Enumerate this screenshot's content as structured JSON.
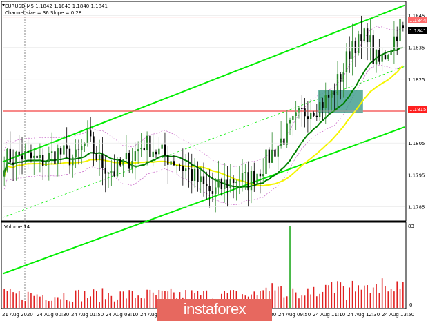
{
  "header": {
    "symbol_line": "EURUSD,M5  1.1842 1.1843 1.1840 1.1841",
    "channel_line": "Channel size = 36 Slope = 0.28"
  },
  "price_tags": {
    "top": "1.1844",
    "current": "1.1841",
    "support": "1.1815"
  },
  "volume_panel": {
    "title": "Volume 14",
    "top_label": "83",
    "zero_label": "0"
  },
  "watermark": "instaforex",
  "colors": {
    "bull": "#2e8b2e",
    "bear": "#000000",
    "volume": "#e02020",
    "big_volume": "#22aa22",
    "ma_green": "#008000",
    "ma_yellow": "#f5f500",
    "channel": "#00ee00",
    "envelope": "#c864c8",
    "support_line": "#ff2020",
    "zone": "#3a9a8a"
  },
  "chart_data": {
    "type": "candlestick",
    "price_axis": {
      "ticks": [
        "1.1845",
        "1.1835",
        "1.1825",
        "1.1815",
        "1.1805",
        "1.1795",
        "1.1785"
      ],
      "ylim": [
        1.1781,
        1.1849
      ]
    },
    "time_axis": [
      "21 Aug 2020",
      "24 Aug 00:30",
      "24 Aug 01:50",
      "24 Aug 03:10",
      "24 Aug 04:30",
      "24 Aug 05:50",
      "24 Aug 07:10",
      "24 Aug 08:30",
      "24 Aug 09:50",
      "24 Aug 11:10",
      "24 Aug 12:30",
      "24 Aug 13:50"
    ],
    "support_level": 1.1815,
    "current_price": 1.1841,
    "last_candle": {
      "open": 1.1842,
      "high": 1.1843,
      "low": 1.184,
      "close": 1.1841
    },
    "close_path": [
      [
        0,
        1.18
      ],
      [
        6,
        1.1801
      ],
      [
        12,
        1.1799
      ],
      [
        18,
        1.1802
      ],
      [
        24,
        1.18
      ],
      [
        28,
        1.1806
      ],
      [
        32,
        1.1799
      ],
      [
        37,
        1.1796
      ],
      [
        42,
        1.18
      ],
      [
        47,
        1.1805
      ],
      [
        52,
        1.1802
      ],
      [
        58,
        1.1799
      ],
      [
        62,
        1.1796
      ],
      [
        66,
        1.1792
      ],
      [
        70,
        1.1789
      ],
      [
        74,
        1.1792
      ],
      [
        78,
        1.1794
      ],
      [
        82,
        1.1793
      ],
      [
        86,
        1.1797
      ],
      [
        90,
        1.1802
      ],
      [
        94,
        1.1807
      ],
      [
        98,
        1.1812
      ],
      [
        102,
        1.1816
      ],
      [
        106,
        1.1817
      ],
      [
        110,
        1.182
      ],
      [
        114,
        1.1828
      ],
      [
        117,
        1.1837
      ],
      [
        120,
        1.1836
      ],
      [
        122,
        1.184
      ],
      [
        124,
        1.1832
      ],
      [
        126,
        1.183
      ],
      [
        128,
        1.1833
      ],
      [
        131,
        1.1838
      ],
      [
        133,
        1.1842
      ],
      [
        134,
        1.1841
      ]
    ],
    "volume_range": [
      0,
      83
    ],
    "volume_spike": {
      "index": 96,
      "value": 83
    }
  }
}
